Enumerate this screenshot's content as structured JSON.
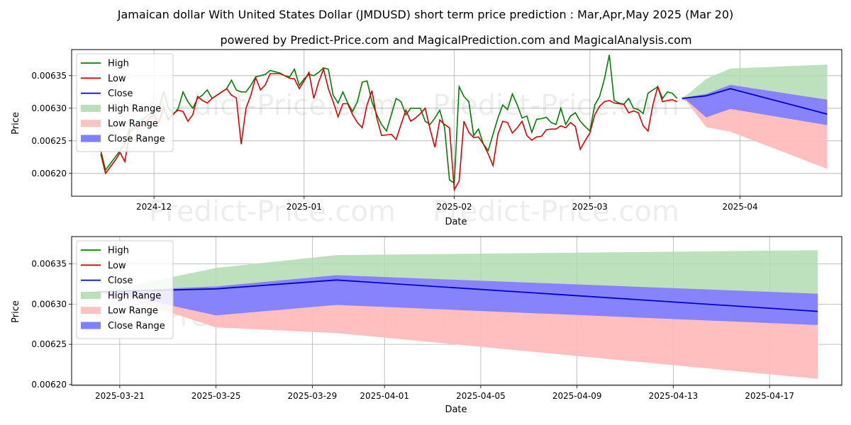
{
  "title": "Jamaican dollar With United States Dollar (JMDUSD) short term price prediction : Mar,Apr,May 2025 (Mar 20)",
  "subtitle": "powered by Predict-Price.com and MagicalPrediction.com and MagicalAnalysis.com",
  "watermark": "Predict-Price.com",
  "colors": {
    "high": "#008000",
    "low": "#e00000",
    "close": "#0000cc",
    "high_range": "#b2dcb2",
    "low_range": "#ffbcbc",
    "close_range": "#7f7fff"
  },
  "chart_data": [
    {
      "type": "line",
      "xlabel": "Date",
      "ylabel": "Price",
      "x_range": [
        "2024-11-14",
        "2025-04-22"
      ],
      "ylim": [
        0.006165,
        0.00639
      ],
      "yticks": [
        "0.00620",
        "0.00625",
        "0.00630",
        "0.00635"
      ],
      "xticks": [
        "2024-12",
        "2025-01",
        "2025-02",
        "2025-03",
        "2025-04"
      ],
      "legend": [
        "High",
        "Low",
        "Close",
        "High Range",
        "Low Range",
        "Close Range"
      ],
      "legend_position": "upper-left",
      "grid": true,
      "x_start": "2024-11-20",
      "historical_high": [
        0.006236,
        0.006205,
        0.006215,
        0.006225,
        0.006235,
        0.006245,
        0.00627,
        0.006275,
        0.00628,
        0.006285,
        0.00629,
        0.006295,
        0.0063,
        0.006325,
        0.0063,
        0.00629,
        0.0063,
        0.006325,
        0.00631,
        0.0063,
        0.006315,
        0.00632,
        0.006328,
        0.006315,
        0.00632,
        0.006325,
        0.00633,
        0.006343,
        0.006328,
        0.006325,
        0.006325,
        0.006335,
        0.006348,
        0.00635,
        0.006352,
        0.006358,
        0.006356,
        0.006354,
        0.00635,
        0.006348,
        0.00636,
        0.006335,
        0.006345,
        0.006352,
        0.00635,
        0.006355,
        0.006362,
        0.00636,
        0.00632,
        0.006308,
        0.006325,
        0.006308,
        0.006295,
        0.00631,
        0.00634,
        0.006342,
        0.00631,
        0.00629,
        0.006275,
        0.006265,
        0.00629,
        0.006315,
        0.00631,
        0.00629,
        0.0063,
        0.0063,
        0.0063,
        0.00628,
        0.006275,
        0.006285,
        0.006297,
        0.00627,
        0.00619,
        0.006185,
        0.006333,
        0.006318,
        0.00631,
        0.006258,
        0.006268,
        0.006245,
        0.006235,
        0.00626,
        0.006285,
        0.006305,
        0.006298,
        0.006322,
        0.006305,
        0.006285,
        0.006288,
        0.006263,
        0.006283,
        0.006284,
        0.006286,
        0.006278,
        0.006275,
        0.0063,
        0.006275,
        0.006288,
        0.006293,
        0.00628,
        0.006272,
        0.006265,
        0.006305,
        0.006318,
        0.006345,
        0.006382,
        0.006312,
        0.006308,
        0.006306,
        0.006315,
        0.0063,
        0.006298,
        0.006292,
        0.006323,
        0.006328,
        0.006333,
        0.006315,
        0.006325,
        0.006323,
        0.006315
      ],
      "historical_low": [
        0.00623,
        0.0062,
        0.00621,
        0.00622,
        0.006232,
        0.006218,
        0.006265,
        0.00627,
        0.006272,
        0.006275,
        0.006285,
        0.00629,
        0.006278,
        0.006302,
        0.006282,
        0.006292,
        0.006297,
        0.006295,
        0.00628,
        0.00629,
        0.006318,
        0.006312,
        0.006308,
        0.006315,
        0.00632,
        0.006325,
        0.00633,
        0.00632,
        0.006316,
        0.006245,
        0.0063,
        0.00632,
        0.006347,
        0.006328,
        0.006336,
        0.006353,
        0.006353,
        0.006353,
        0.00635,
        0.006346,
        0.006345,
        0.00633,
        0.006342,
        0.006355,
        0.006315,
        0.00634,
        0.00636,
        0.00633,
        0.00631,
        0.006287,
        0.006307,
        0.006307,
        0.00629,
        0.006278,
        0.00627,
        0.006305,
        0.006327,
        0.006285,
        0.006258,
        0.006259,
        0.00626,
        0.006252,
        0.006275,
        0.006297,
        0.00628,
        0.006285,
        0.006292,
        0.0063,
        0.006268,
        0.00624,
        0.006282,
        0.006275,
        0.00627,
        0.006175,
        0.006188,
        0.00628,
        0.006263,
        0.006255,
        0.006256,
        0.006245,
        0.00623,
        0.006212,
        0.00626,
        0.00628,
        0.006278,
        0.006262,
        0.00627,
        0.00628,
        0.006258,
        0.006251,
        0.006256,
        0.006257,
        0.006267,
        0.006268,
        0.006268,
        0.006273,
        0.00627,
        0.006278,
        0.006272,
        0.006237,
        0.00625,
        0.006262,
        0.00629,
        0.006303,
        0.00631,
        0.006312,
        0.006308,
        0.006307,
        0.006306,
        0.006293,
        0.006296,
        0.006293,
        0.006273,
        0.006265,
        0.006305,
        0.006333,
        0.00631,
        0.006312,
        0.006313,
        0.00631
      ]
    },
    {
      "type": "area",
      "xlabel": "Date",
      "ylabel": "Price",
      "x_range": [
        "2025-03-19",
        "2025-04-20"
      ],
      "ylim": [
        0.006199,
        0.006384
      ],
      "yticks": [
        "0.00620",
        "0.00625",
        "0.00630",
        "0.00635"
      ],
      "xticks": [
        "2025-03-21",
        "2025-03-25",
        "2025-03-29",
        "2025-04-01",
        "2025-04-05",
        "2025-04-09",
        "2025-04-13",
        "2025-04-17"
      ],
      "legend": [
        "High",
        "Low",
        "Close",
        "High Range",
        "Low Range",
        "Close Range"
      ],
      "legend_position": "upper-left",
      "grid": true,
      "forecast": {
        "dates": [
          "2025-03-20",
          "2025-03-21",
          "2025-03-25",
          "2025-03-30",
          "2025-04-19"
        ],
        "close": [
          0.006315,
          0.006316,
          0.006319,
          0.00633,
          0.006291
        ],
        "close_upper": [
          0.006315,
          0.006317,
          0.006322,
          0.006336,
          0.006313
        ],
        "close_lower": [
          0.006315,
          0.006312,
          0.006286,
          0.006299,
          0.006274
        ],
        "high_upper": [
          0.006317,
          0.00632,
          0.006345,
          0.006361,
          0.006367
        ],
        "low_lower": [
          0.006313,
          0.00631,
          0.006271,
          0.006264,
          0.006207
        ]
      }
    }
  ]
}
